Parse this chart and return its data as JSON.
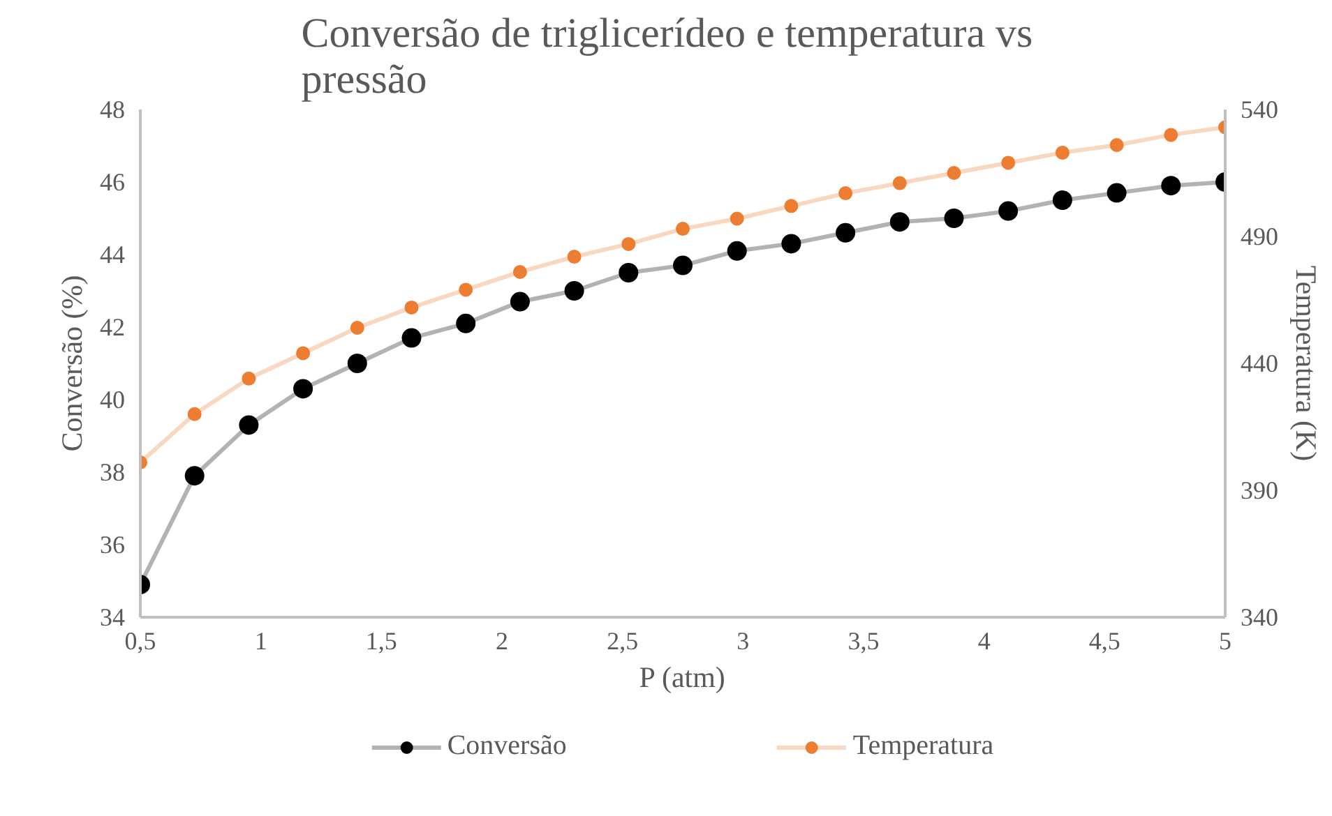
{
  "chart_data": {
    "type": "line",
    "title": "Conversão  de triglicerídeo  e temperatura  vs\npressão",
    "xlabel": "P (atm)",
    "ylabel": "Conversão (%)",
    "y2label": "Temperatura (K)",
    "x": [
      0.5,
      0.725,
      0.95,
      1.175,
      1.4,
      1.625,
      1.85,
      2.075,
      2.3,
      2.525,
      2.75,
      2.975,
      3.2,
      3.425,
      3.65,
      3.875,
      4.1,
      4.325,
      4.55,
      4.775,
      5
    ],
    "series": [
      {
        "name": "Conversão",
        "color": "#000000",
        "values": [
          34.9,
          37.9,
          39.3,
          40.3,
          41.0,
          41.7,
          42.1,
          42.7,
          43.0,
          43.5,
          43.7,
          44.1,
          44.3,
          44.6,
          44.9,
          45.0,
          45.2,
          45.5,
          45.7,
          45.9,
          46.0
        ]
      },
      {
        "name": "Temperatura",
        "color": "#ed7d31",
        "axis": "y2",
        "values": [
          401,
          420,
          434,
          444,
          454,
          462,
          469,
          476,
          482,
          487,
          493,
          497,
          502,
          507,
          511,
          515,
          519,
          523,
          526,
          530,
          533
        ]
      }
    ],
    "xlim": [
      0.5,
      5
    ],
    "xticks": [
      {
        "value": 0.5,
        "label": "0,5"
      },
      1,
      {
        "value": 1.5,
        "label": "1,5"
      },
      2,
      {
        "value": 2.5,
        "label": "2,5"
      },
      3,
      {
        "value": 3.5,
        "label": "3,5"
      },
      4,
      {
        "value": 4.5,
        "label": "4,5"
      },
      5
    ],
    "ylim": [
      34,
      48
    ],
    "yticks": [
      34,
      36,
      38,
      40,
      42,
      44,
      46,
      48
    ],
    "y2lim": [
      340,
      540
    ],
    "y2ticks": [
      340,
      390,
      440,
      490,
      540
    ],
    "grid": false,
    "legend": "bottom",
    "marker": "circle"
  }
}
